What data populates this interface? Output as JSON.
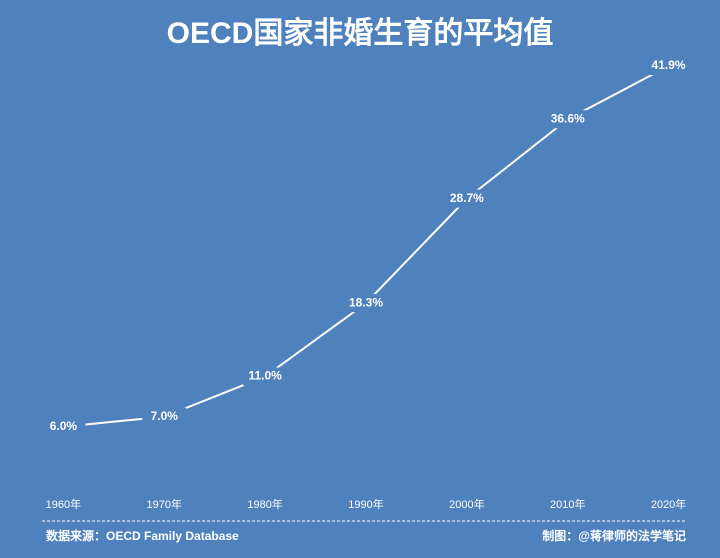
{
  "chart_data": {
    "type": "line",
    "title": "OECD国家非婚生育的平均值",
    "categories": [
      "1960年",
      "1970年",
      "1980年",
      "1990年",
      "2000年",
      "2010年",
      "2020年"
    ],
    "values": [
      6.0,
      7.0,
      11.0,
      18.3,
      28.7,
      36.6,
      41.9
    ],
    "value_labels": [
      "6.0%",
      "7.0%",
      "11.0%",
      "18.3%",
      "28.7%",
      "36.6%",
      "41.9%"
    ],
    "color": "#ffffff",
    "source": "数据来源：OECD Family Database",
    "credit": "制图：@蒋律师的法学笔记"
  }
}
